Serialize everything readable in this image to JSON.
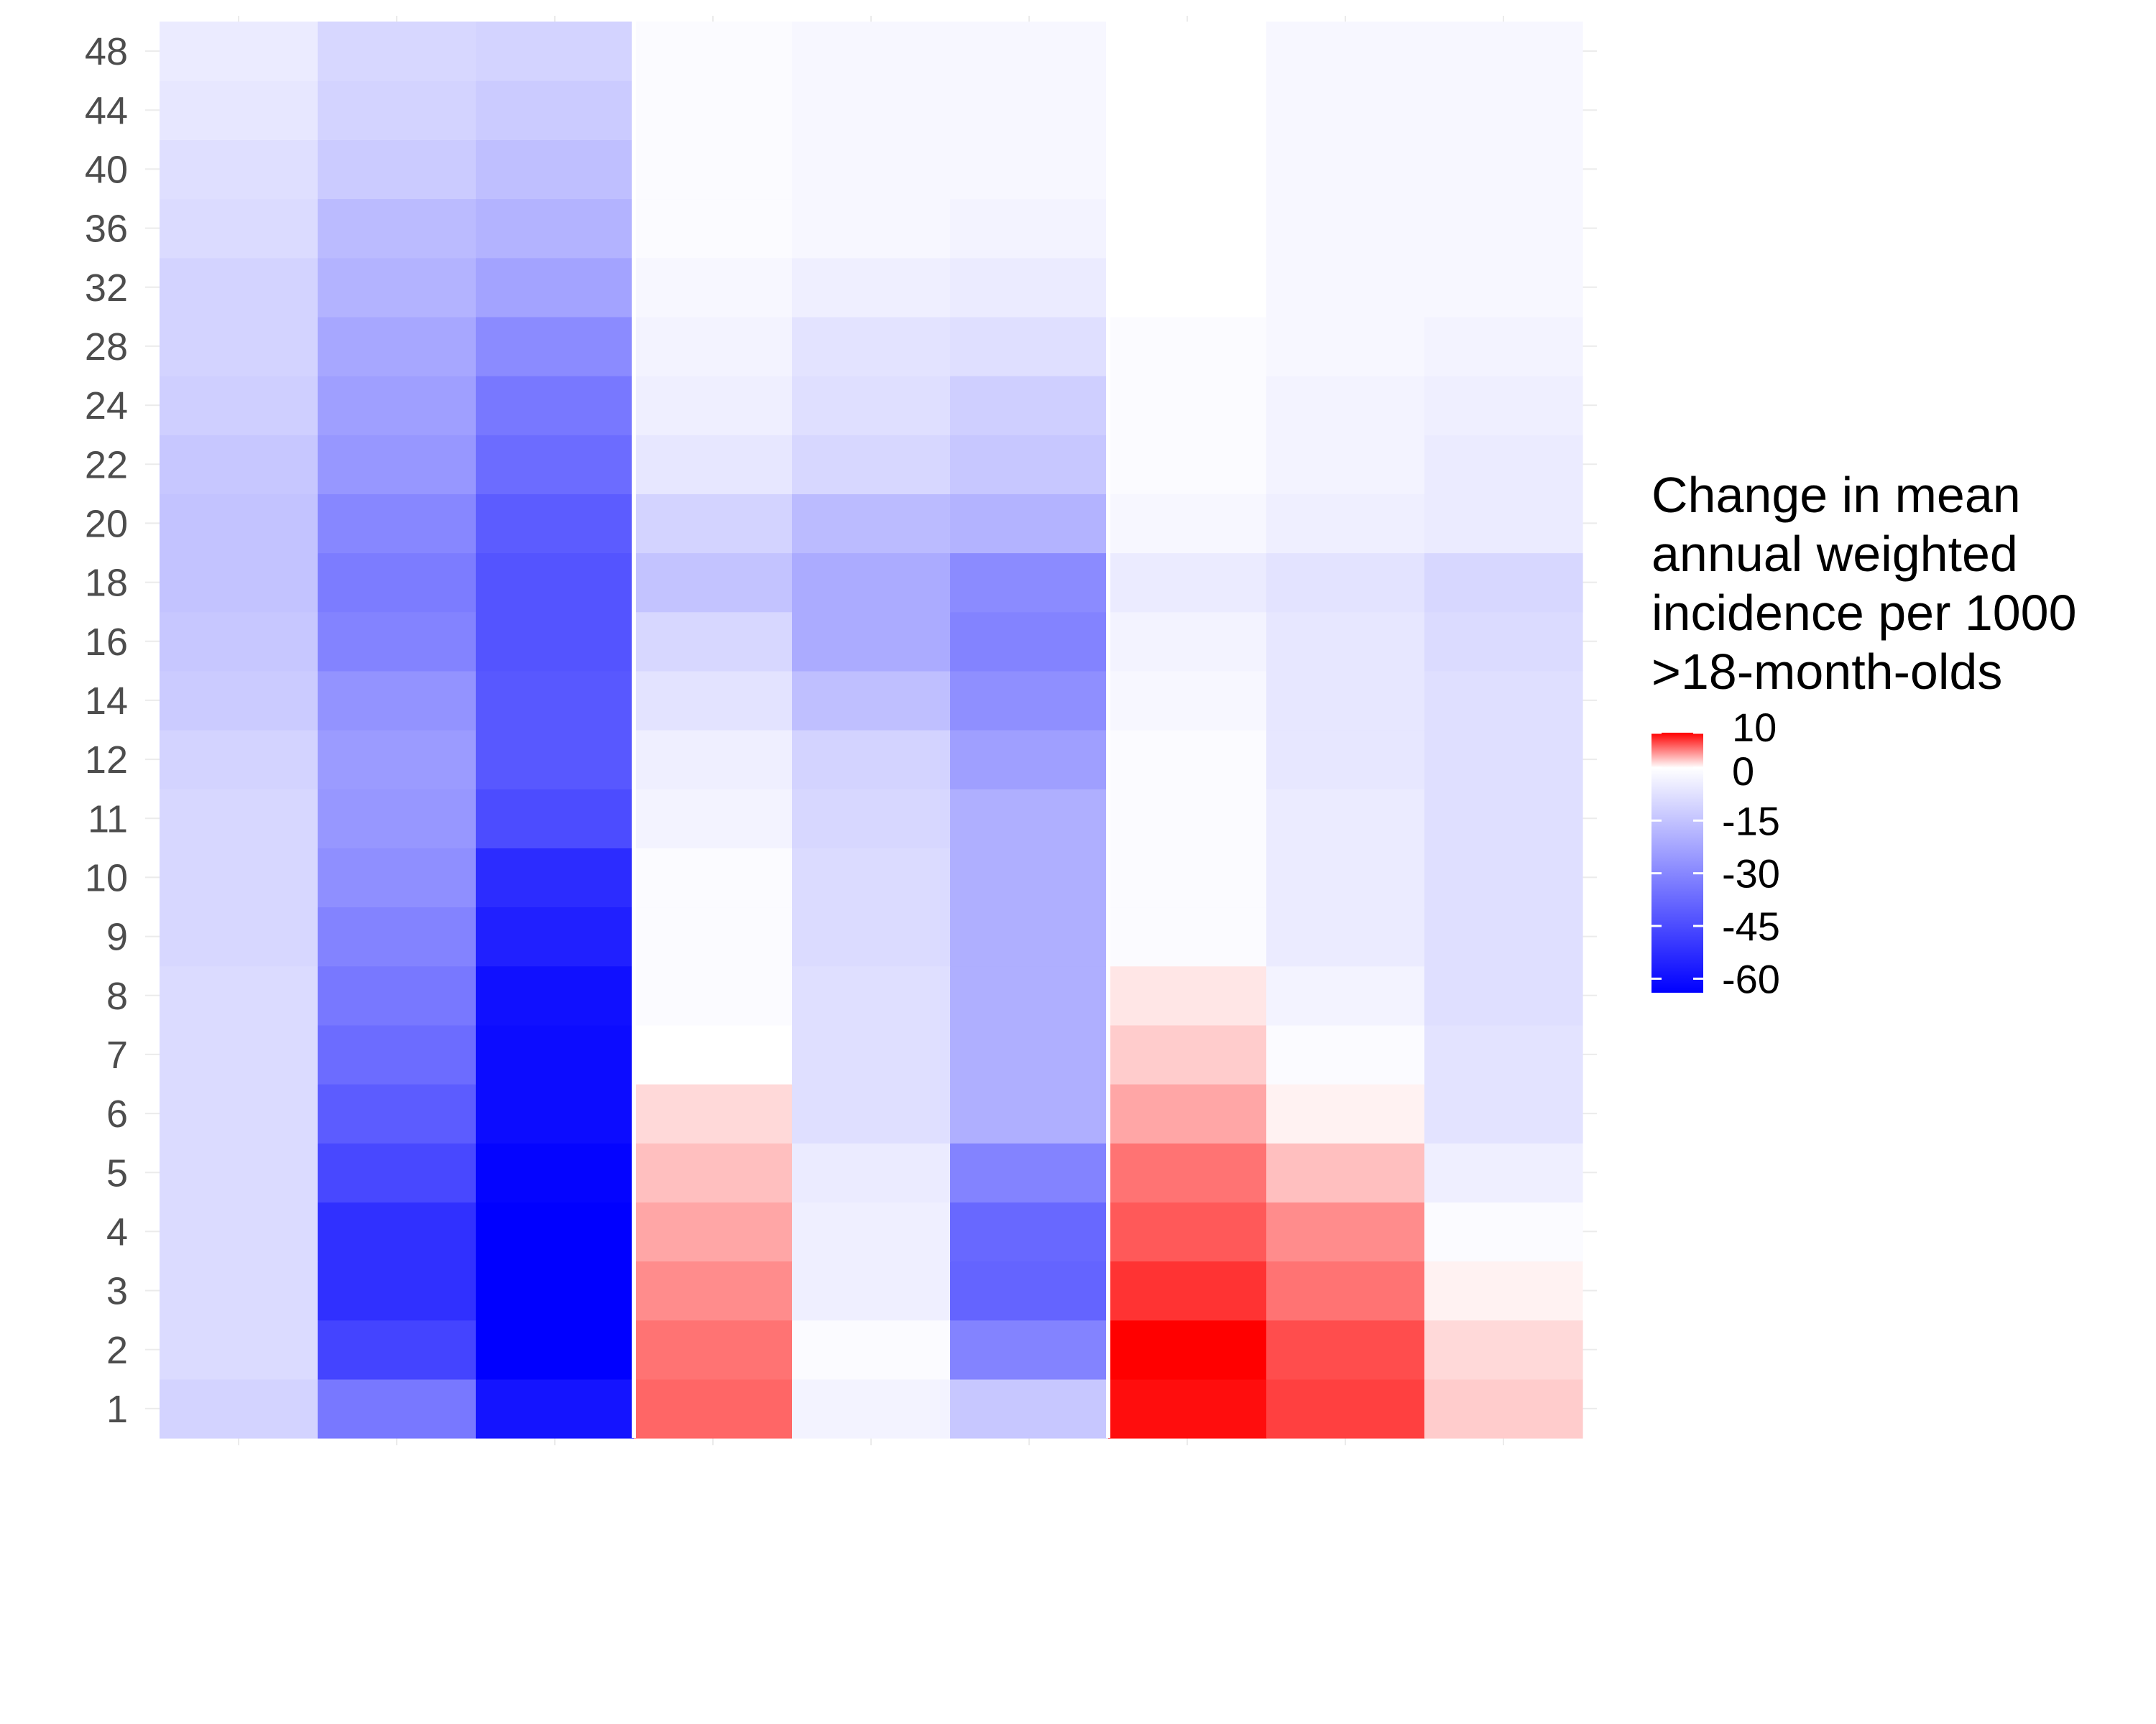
{
  "chart_data": {
    "type": "heatmap",
    "title": "",
    "xlabel": "",
    "ylabel": "",
    "x_categories": [
      "",
      "",
      "",
      "",
      "",
      "",
      "",
      "",
      ""
    ],
    "x_groups": [
      3,
      3,
      3
    ],
    "y_categories": [
      "1",
      "2",
      "3",
      "4",
      "5",
      "6",
      "7",
      "8",
      "9",
      "10",
      "11",
      "12",
      "14",
      "16",
      "18",
      "20",
      "22",
      "24",
      "28",
      "32",
      "36",
      "40",
      "44",
      "48"
    ],
    "values": [
      [
        -11,
        -34,
        -59,
        6,
        -3,
        -14,
        9.5,
        7.5,
        2
      ],
      [
        -9,
        -47,
        -64,
        5.5,
        -1,
        -31,
        10,
        7,
        1.5
      ],
      [
        -9,
        -52,
        -64,
        4.5,
        -4,
        -39,
        8,
        5.5,
        0.5
      ],
      [
        -9,
        -52,
        -64,
        3.5,
        -4,
        -38,
        6.5,
        4.5,
        -1
      ],
      [
        -9,
        -46,
        -63,
        2.5,
        -5,
        -31,
        5.5,
        2.5,
        -4
      ],
      [
        -9,
        -41,
        -61,
        1.5,
        -8,
        -20,
        3.5,
        0.5,
        -7
      ],
      [
        -9,
        -37,
        -61,
        0,
        -8,
        -20,
        2,
        -1,
        -7
      ],
      [
        -9,
        -34,
        -60,
        -1,
        -8,
        -20,
        1,
        -3,
        -8
      ],
      [
        -10,
        -31,
        -56,
        -1,
        -9,
        -20,
        -1,
        -5,
        -8
      ],
      [
        -10,
        -28,
        -53,
        -1,
        -9,
        -20,
        -1,
        -5,
        -8
      ],
      [
        -10,
        -26,
        -45,
        -3,
        -10,
        -20,
        -1,
        -5,
        -8
      ],
      [
        -11,
        -25,
        -42,
        -4,
        -11,
        -24,
        -1,
        -6,
        -8
      ],
      [
        -13,
        -27,
        -42,
        -7,
        -16,
        -28,
        -2,
        -6,
        -8
      ],
      [
        -14,
        -31,
        -43,
        -10,
        -21,
        -31,
        -3,
        -6,
        -9
      ],
      [
        -15,
        -33,
        -43,
        -15,
        -21,
        -29,
        -5,
        -7,
        -10
      ],
      [
        -15,
        -30,
        -41,
        -11,
        -17,
        -19,
        -2,
        -4,
        -5
      ],
      [
        -14,
        -26,
        -37,
        -6,
        -10,
        -14,
        -1,
        -3,
        -5
      ],
      [
        -12,
        -24,
        -34,
        -4,
        -8,
        -12,
        -1,
        -3,
        -4
      ],
      [
        -11,
        -22,
        -29,
        -3,
        -7,
        -8,
        -1,
        -2,
        -3
      ],
      [
        -11,
        -19,
        -23,
        -2,
        -4,
        -5,
        0,
        -2,
        -2
      ],
      [
        -9,
        -17,
        -19,
        -1,
        -2,
        -3,
        0,
        -2,
        -2
      ],
      [
        -8,
        -13,
        -16,
        -1,
        -2,
        -2,
        0,
        -2,
        -2
      ],
      [
        -6,
        -11,
        -13,
        -1,
        -2,
        -2,
        0,
        -2,
        -2
      ],
      [
        -5,
        -10,
        -11,
        -1,
        -2,
        -2,
        0,
        -2,
        -2
      ]
    ],
    "legend": {
      "title": [
        "Change in mean",
        "annual weighted",
        "incidence per 1000",
        ">18-month-olds"
      ],
      "ticks": [
        {
          "value": 10,
          "label": "10"
        },
        {
          "value": 0,
          "label": "0"
        },
        {
          "value": -15,
          "label": "-15"
        },
        {
          "value": -30,
          "label": "-30"
        },
        {
          "value": -45,
          "label": "-45"
        },
        {
          "value": -60,
          "label": "-60"
        }
      ],
      "range": [
        -64,
        10
      ],
      "low_color": "#0000ff",
      "mid_color": "#ffffff",
      "high_color": "#ff0000",
      "placement": "right"
    },
    "grid": true
  }
}
